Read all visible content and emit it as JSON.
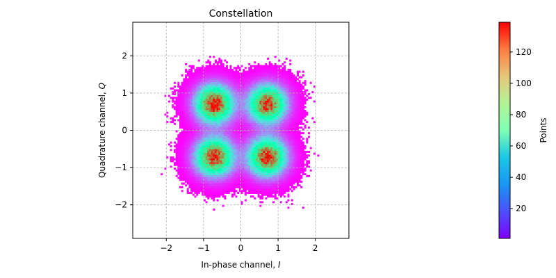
{
  "chart_data": {
    "type": "heatmap",
    "title": "Constellation",
    "xlabel": "In-phase channel, ",
    "xlabel_var": "I",
    "ylabel": "Quadrature channel, ",
    "ylabel_var": "Q",
    "xlim": [
      -2.9,
      2.9
    ],
    "ylim": [
      -2.9,
      2.9
    ],
    "xticks": [
      -2,
      -1,
      0,
      1,
      2
    ],
    "yticks": [
      -2,
      -1,
      0,
      1,
      2
    ],
    "xtick_labels": [
      "−2",
      "−1",
      "0",
      "1",
      "2"
    ],
    "ytick_labels": [
      "−2",
      "−1",
      "0",
      "1",
      "2"
    ],
    "grid": true,
    "colormap": "rainbow",
    "clusters": [
      {
        "i": -0.71,
        "q": 0.71,
        "peak_count": 138
      },
      {
        "i": 0.71,
        "q": 0.71,
        "peak_count": 132
      },
      {
        "i": -0.71,
        "q": -0.71,
        "peak_count": 134
      },
      {
        "i": 0.71,
        "q": -0.71,
        "peak_count": 136
      }
    ],
    "cluster_sigma": 0.33,
    "bin_width": 0.05,
    "colorbar": {
      "label": "Points",
      "min": 1,
      "max": 139,
      "ticks": [
        20,
        40,
        60,
        80,
        100,
        120
      ],
      "tick_labels": [
        "20",
        "40",
        "60",
        "80",
        "100",
        "120"
      ]
    }
  }
}
